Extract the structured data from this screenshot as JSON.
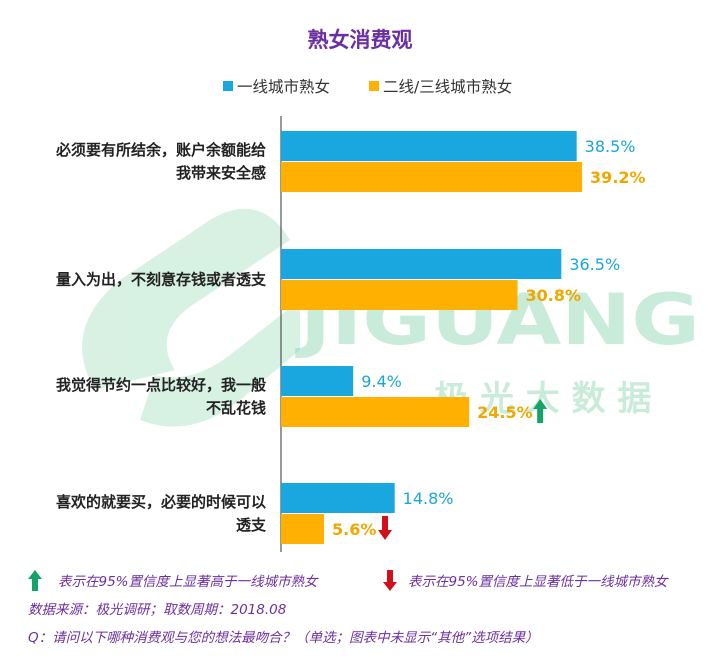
{
  "chart_data": {
    "type": "bar",
    "orientation": "horizontal",
    "title": "熟女消费观",
    "categories": [
      [
        "必须要有所结余，账户余额能给",
        "我带来安全感"
      ],
      [
        "量入为出，不刻意存钱或者透支"
      ],
      [
        "我觉得节约一点比较好，我一般",
        "不乱花钱"
      ],
      [
        "喜欢的就要买，必要的时候可以",
        "透支"
      ]
    ],
    "series": [
      {
        "name": "一线城市熟女",
        "color": "#1aa7e0",
        "values": [
          38.5,
          36.5,
          9.4,
          14.8
        ],
        "labels": [
          "38.5%",
          "36.5%",
          "9.4%",
          "14.8%"
        ]
      },
      {
        "name": "二线/三线城市熟女",
        "color": "#ffb000",
        "values": [
          39.2,
          30.8,
          24.5,
          5.6
        ],
        "labels": [
          "39.2%",
          "30.8%",
          "24.5%",
          "5.6%"
        ]
      }
    ],
    "significance": [
      null,
      null,
      "up",
      "down"
    ],
    "legend_position": "top",
    "grid": false
  },
  "colors": {
    "title": "#6b2fa0",
    "tier1": "#1aa7e0",
    "tier23": "#ffb000",
    "up_arrow": "#16a36a",
    "down_arrow": "#d0101a",
    "axis": "#333333",
    "watermark": "#7fd1a6"
  },
  "notes": {
    "up": "表示在95%置信度上显著高于一线城市熟女",
    "down": "表示在95%置信度上显著低于一线城市熟女"
  },
  "source": "数据来源：极光调研；取数周期：2018.08",
  "question": "Q：请问以下哪种消费观与您的想法最吻合？（单选；图表中未显示“其他”选项结果）",
  "watermark": {
    "logo_text": "JIGUANG",
    "sub_text": "极 光 大 数 据"
  }
}
